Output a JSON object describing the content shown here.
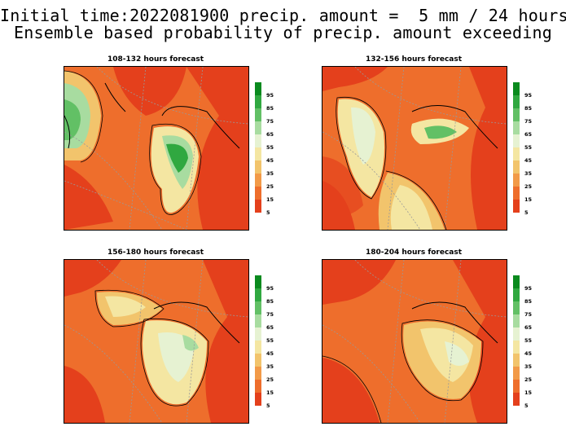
{
  "header": {
    "line1": "Initial time:2022081900 precip. amount =  5 mm / 24 hours",
    "line2": "Ensemble based probability of precip. amount exceeding"
  },
  "legend": {
    "levels": [
      "95",
      "85",
      "75",
      "65",
      "55",
      "45",
      "35",
      "25",
      "15",
      "5"
    ],
    "colors": [
      "#0a8a1e",
      "#30a840",
      "#62c065",
      "#a8dca0",
      "#e6f2d2",
      "#f4e6a2",
      "#f2c46c",
      "#f29a48",
      "#ee6e2c",
      "#e4401c"
    ]
  },
  "panels": [
    {
      "title": "108-132 hours forecast"
    },
    {
      "title": "132-156 hours forecast"
    },
    {
      "title": "156-180 hours forecast"
    },
    {
      "title": "180-204 hours forecast"
    }
  ]
}
